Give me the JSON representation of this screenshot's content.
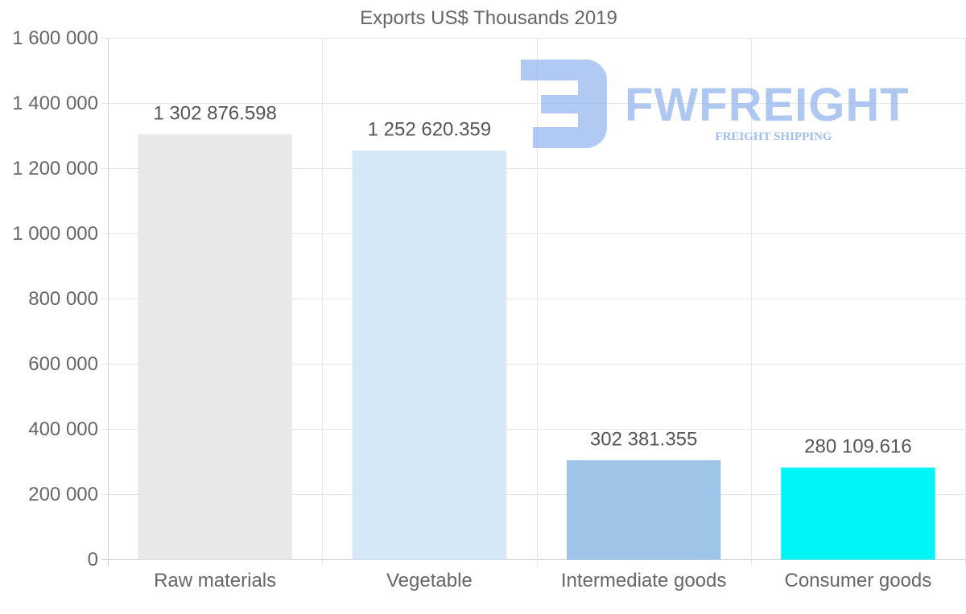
{
  "chart_data": {
    "type": "bar",
    "title": "Exports US$ Thousands 2019",
    "categories": [
      "Raw materials",
      "Vegetable",
      "Intermediate goods",
      "Consumer goods"
    ],
    "values": [
      1302876.598,
      1252620.359,
      302381.355,
      280109.616
    ],
    "value_labels": [
      "1 302 876.598",
      "1 252 620.359",
      "302 381.355",
      "280 109.616"
    ],
    "bar_colors": [
      "#e8e8e8",
      "#d6e8f8",
      "#9cc5e8",
      "#00f5f7"
    ],
    "ylim": [
      0,
      1600000
    ],
    "yticks": [
      0,
      200000,
      400000,
      600000,
      800000,
      1000000,
      1200000,
      1400000,
      1600000
    ],
    "ytick_labels": [
      "0",
      "200 000",
      "400 000",
      "600 000",
      "800 000",
      "1 000 000",
      "1 200 000",
      "1 400 000",
      "1 600 000"
    ],
    "xlabel": "",
    "ylabel": "",
    "grid": true
  },
  "watermark": {
    "brand": "FWFREIGHT",
    "tagline": "FREIGHT SHIPPING",
    "color": "#8fb3ee"
  }
}
